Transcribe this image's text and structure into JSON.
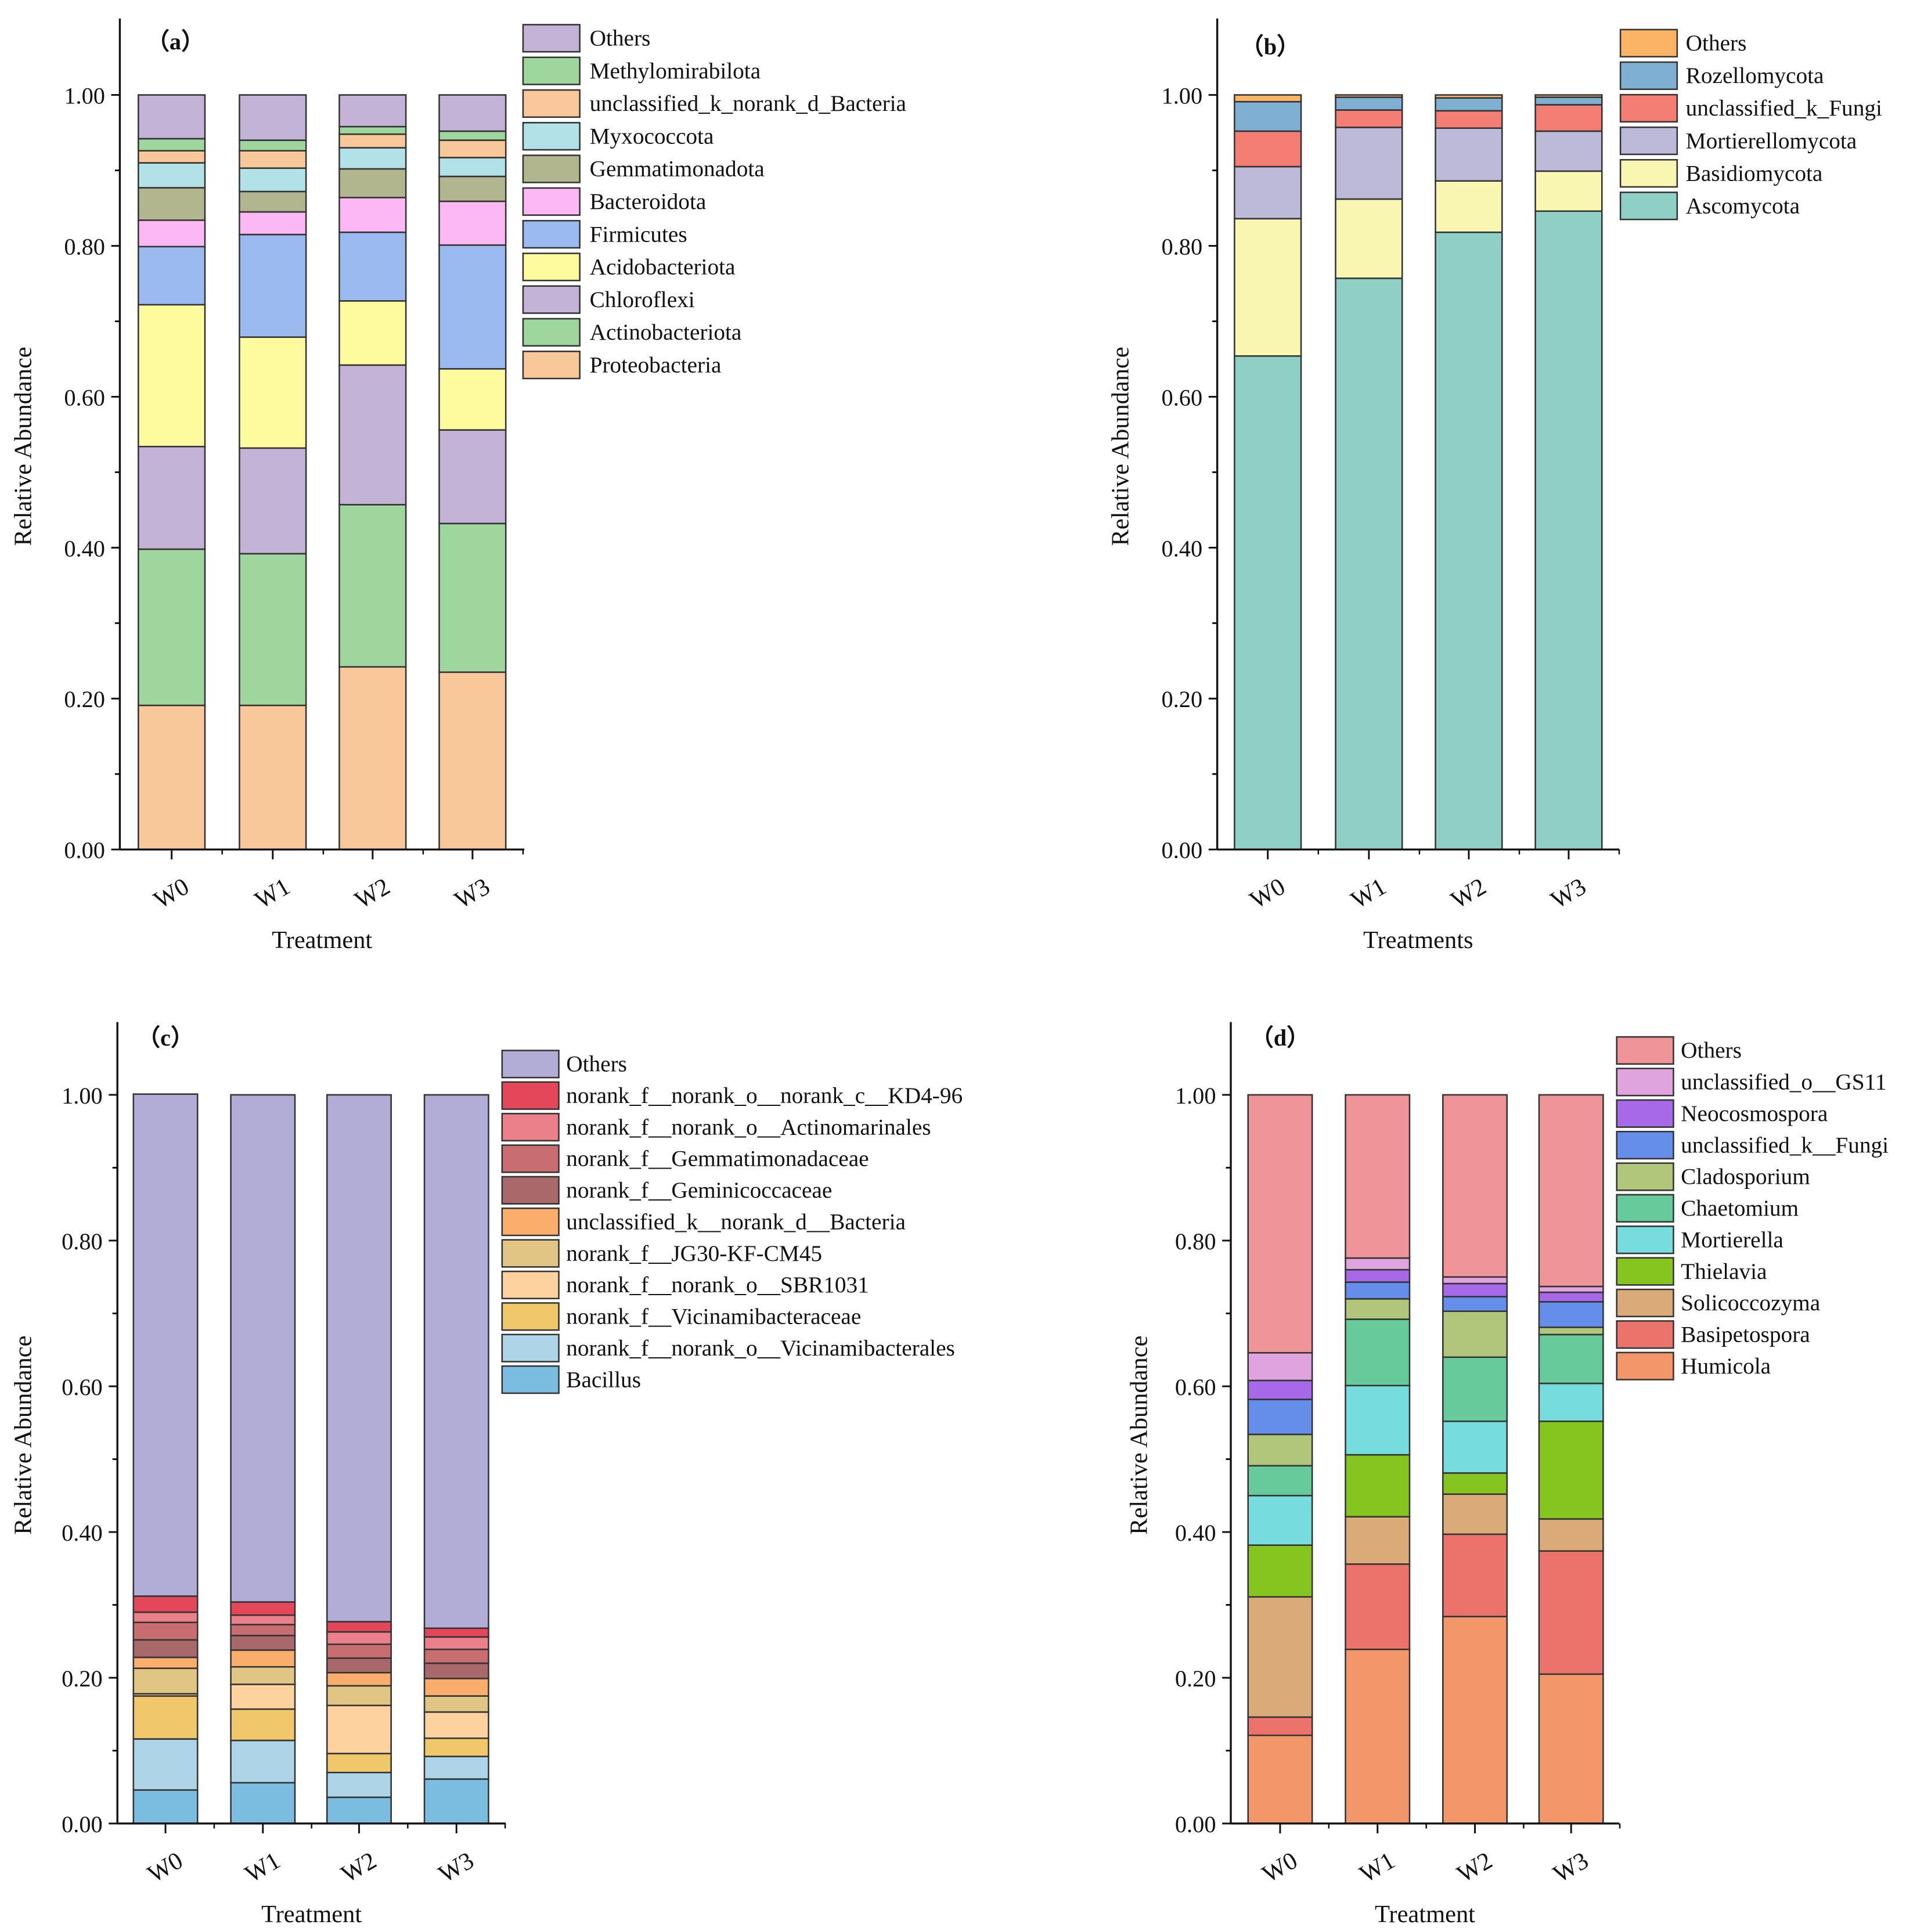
{
  "chart_data": [
    {
      "type": "bar",
      "stacked": true,
      "panel_label": "（a）",
      "categories": [
        "W0",
        "W1",
        "W2",
        "W3"
      ],
      "xlabel": "Treatment",
      "ylabel": "Relative Abundance",
      "ylim": [
        0,
        1.1
      ],
      "yticks": [
        "0.00",
        "0.20",
        "0.40",
        "0.60",
        "0.80",
        "1.00"
      ],
      "legend_position": "right",
      "series": [
        {
          "name": "Proteobacteria",
          "color": "#f9c89a",
          "values": [
            0.191,
            0.191,
            0.242,
            0.235
          ]
        },
        {
          "name": "Actinobacteriota",
          "color": "#9fd69e",
          "values": [
            0.207,
            0.201,
            0.215,
            0.197
          ]
        },
        {
          "name": "Chloroflexi",
          "color": "#c3b3d6",
          "values": [
            0.136,
            0.14,
            0.185,
            0.124
          ]
        },
        {
          "name": "Acidobacteriota",
          "color": "#fdfb9e",
          "values": [
            0.188,
            0.147,
            0.085,
            0.081
          ]
        },
        {
          "name": "Firmicutes",
          "color": "#9bbaf0",
          "values": [
            0.077,
            0.136,
            0.091,
            0.164
          ]
        },
        {
          "name": "Bacteroidota",
          "color": "#fbb8f4",
          "values": [
            0.035,
            0.03,
            0.046,
            0.058
          ]
        },
        {
          "name": "Gemmatimonadota",
          "color": "#b1b68f",
          "values": [
            0.043,
            0.027,
            0.038,
            0.033
          ]
        },
        {
          "name": "Myxococcota",
          "color": "#b2e2e7",
          "values": [
            0.033,
            0.031,
            0.028,
            0.025
          ]
        },
        {
          "name": "unclassified_k_norank_d_Bacteria",
          "color": "#f9c89a",
          "values": [
            0.016,
            0.023,
            0.018,
            0.023
          ]
        },
        {
          "name": "Methylomirabilota",
          "color": "#9fd69e",
          "values": [
            0.016,
            0.014,
            0.01,
            0.012
          ]
        },
        {
          "name": "Others",
          "color": "#c3b3d6",
          "values": [
            0.058,
            0.06,
            0.042,
            0.048
          ]
        }
      ]
    },
    {
      "type": "bar",
      "stacked": true,
      "panel_label": "（b）",
      "categories": [
        "W0",
        "W1",
        "W2",
        "W3"
      ],
      "xlabel": "Treatments",
      "ylabel": "Relative Abundance",
      "ylim": [
        0,
        1.1
      ],
      "yticks": [
        "0.00",
        "0.20",
        "0.40",
        "0.60",
        "0.80",
        "1.00"
      ],
      "legend_position": "right",
      "series": [
        {
          "name": "Ascomycota",
          "color": "#8ed0c5",
          "values": [
            0.654,
            0.757,
            0.818,
            0.846
          ]
        },
        {
          "name": "Basidiomycota",
          "color": "#f9f6b2",
          "values": [
            0.182,
            0.105,
            0.068,
            0.053
          ]
        },
        {
          "name": "Mortierellomycota",
          "color": "#bcb9d9",
          "values": [
            0.069,
            0.095,
            0.07,
            0.053
          ]
        },
        {
          "name": "unclassified_k_Fungi",
          "color": "#f47e73",
          "values": [
            0.047,
            0.023,
            0.023,
            0.035
          ]
        },
        {
          "name": "Rozellomycota",
          "color": "#7fb0d4",
          "values": [
            0.039,
            0.017,
            0.017,
            0.01
          ]
        },
        {
          "name": "Others",
          "color": "#fbb465",
          "values": [
            0.009,
            0.003,
            0.004,
            0.003
          ]
        }
      ]
    },
    {
      "type": "bar",
      "stacked": true,
      "panel_label": "（c）",
      "categories": [
        "W0",
        "W1",
        "W2",
        "W3"
      ],
      "xlabel": "Treatment",
      "ylabel": "Relative Abundance",
      "ylim": [
        0,
        1.1
      ],
      "yticks": [
        "0.00",
        "0.20",
        "0.40",
        "0.60",
        "0.80",
        "1.00"
      ],
      "legend_position": "right",
      "series": [
        {
          "name": "Bacillus",
          "color": "#7bbde0",
          "values": [
            0.046,
            0.056,
            0.036,
            0.061
          ]
        },
        {
          "name": "norank_f__norank_o__Vicinamibacterales",
          "color": "#add5e7",
          "values": [
            0.07,
            0.058,
            0.034,
            0.031
          ]
        },
        {
          "name": "norank_f__Vicinamibacteraceae",
          "color": "#f0c86b",
          "values": [
            0.059,
            0.043,
            0.026,
            0.025
          ]
        },
        {
          "name": "norank_f__norank_o__SBR1031",
          "color": "#fed29f",
          "values": [
            0.003,
            0.034,
            0.066,
            0.036
          ]
        },
        {
          "name": "norank_f__JG30-KF-CM45",
          "color": "#e1c585",
          "values": [
            0.035,
            0.024,
            0.027,
            0.022
          ]
        },
        {
          "name": "unclassified_k__norank_d__Bacteria",
          "color": "#fbae6c",
          "values": [
            0.015,
            0.023,
            0.018,
            0.024
          ]
        },
        {
          "name": "norank_f__Geminicoccaceae",
          "color": "#a9686a",
          "values": [
            0.024,
            0.02,
            0.02,
            0.021
          ]
        },
        {
          "name": "norank_f__Gemmatimonadaceae",
          "color": "#c86e70",
          "values": [
            0.024,
            0.015,
            0.019,
            0.019
          ]
        },
        {
          "name": "norank_f__norank_o__Actinomarinales",
          "color": "#eb7f8a",
          "values": [
            0.014,
            0.013,
            0.017,
            0.017
          ]
        },
        {
          "name": "norank_f__norank_o__norank_c__KD4-96",
          "color": "#e5475a",
          "values": [
            0.022,
            0.018,
            0.014,
            0.012
          ]
        },
        {
          "name": "Others",
          "color": "#b1add6",
          "values": [
            0.689,
            0.696,
            0.723,
            0.732
          ]
        }
      ]
    },
    {
      "type": "bar",
      "stacked": true,
      "panel_label": "（d）",
      "categories": [
        "W0",
        "W1",
        "W2",
        "W3"
      ],
      "xlabel": "Treatment",
      "ylabel": "Relative Abundance",
      "ylim": [
        0,
        1.1
      ],
      "yticks": [
        "0.00",
        "0.20",
        "0.40",
        "0.60",
        "0.80",
        "1.00"
      ],
      "legend_position": "right",
      "series": [
        {
          "name": "Humicola",
          "color": "#f29769",
          "values": [
            0.121,
            0.239,
            0.284,
            0.205
          ]
        },
        {
          "name": "Basipetospora",
          "color": "#ec736c",
          "values": [
            0.025,
            0.117,
            0.113,
            0.169
          ]
        },
        {
          "name": "Solicoccozyma",
          "color": "#dbaa79",
          "values": [
            0.165,
            0.065,
            0.055,
            0.044
          ]
        },
        {
          "name": "Thielavia",
          "color": "#86c41f",
          "values": [
            0.071,
            0.085,
            0.029,
            0.134
          ]
        },
        {
          "name": "Mortierella",
          "color": "#77dcdd",
          "values": [
            0.068,
            0.095,
            0.071,
            0.052
          ]
        },
        {
          "name": "Chaetomium",
          "color": "#67ca9a",
          "values": [
            0.041,
            0.091,
            0.088,
            0.067
          ]
        },
        {
          "name": "Cladosporium",
          "color": "#b0c67b",
          "values": [
            0.043,
            0.028,
            0.063,
            0.01
          ]
        },
        {
          "name": "unclassified_k__Fungi",
          "color": "#648ee9",
          "values": [
            0.048,
            0.023,
            0.02,
            0.035
          ]
        },
        {
          "name": "Neocosmospora",
          "color": "#a869e8",
          "values": [
            0.026,
            0.017,
            0.018,
            0.013
          ]
        },
        {
          "name": "unclassified_o__GS11",
          "color": "#dfa4dd",
          "values": [
            0.038,
            0.016,
            0.009,
            0.008
          ]
        },
        {
          "name": "Others",
          "color": "#f09597",
          "values": [
            0.354,
            0.224,
            0.25,
            0.263
          ]
        }
      ]
    }
  ]
}
